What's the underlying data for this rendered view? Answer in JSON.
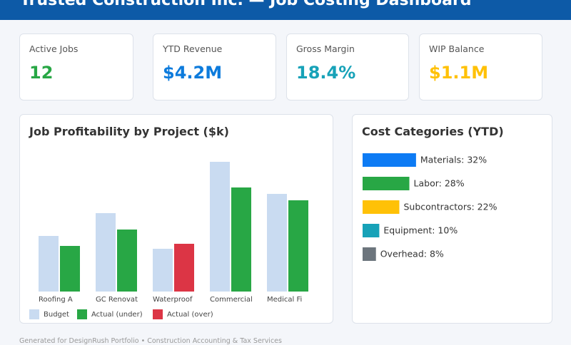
{
  "header": {
    "title": "Trusted Construction Inc. — Job Costing Dashboard"
  },
  "kpis": [
    {
      "label": "Active Jobs",
      "value": "12",
      "color": "#28a745"
    },
    {
      "label": "YTD Revenue",
      "value": "$4.2M",
      "color": "#0d7bdc"
    },
    {
      "label": "Gross Margin",
      "value": "18.4%",
      "color": "#17a2b8"
    },
    {
      "label": "WIP Balance",
      "value": "$1.1M",
      "color": "#ffc107"
    }
  ],
  "profit_chart": {
    "type": "bar",
    "title": "Job Profitability by Project ($k)",
    "categories": [
      "Roofing A",
      "GC Renovat",
      "Waterproof",
      "Commercial",
      "Medical Fi"
    ],
    "series": [
      {
        "name": "Budget",
        "color": "#c9dbf1",
        "values": [
          78,
          110,
          60,
          182,
          137
        ]
      },
      {
        "name": "Actual",
        "values": [
          64,
          87,
          67,
          146,
          128
        ]
      }
    ],
    "legend": [
      {
        "label": "Budget",
        "color": "#c9dbf1"
      },
      {
        "label": "Actual (under)",
        "color": "#28a745"
      },
      {
        "label": "Actual (over)",
        "color": "#dc3545"
      }
    ],
    "ylim": [
      0,
      190
    ]
  },
  "cost_chart": {
    "type": "bar",
    "title": "Cost Categories (YTD)",
    "values": [
      32,
      28,
      22,
      10,
      8
    ],
    "value_labels": [
      "Materials: 32%",
      "Labor: 28%",
      "Subcontractors: 22%",
      "Equipment: 10%",
      "Overhead: 8%"
    ],
    "colors": [
      "#0d7bf4",
      "#28a745",
      "#ffc107",
      "#17a2b8",
      "#6c757d"
    ],
    "xlim": [
      0,
      100
    ]
  },
  "footer": {
    "text": "Generated for DesignRush Portfolio • Construction Accounting & Tax Services"
  }
}
